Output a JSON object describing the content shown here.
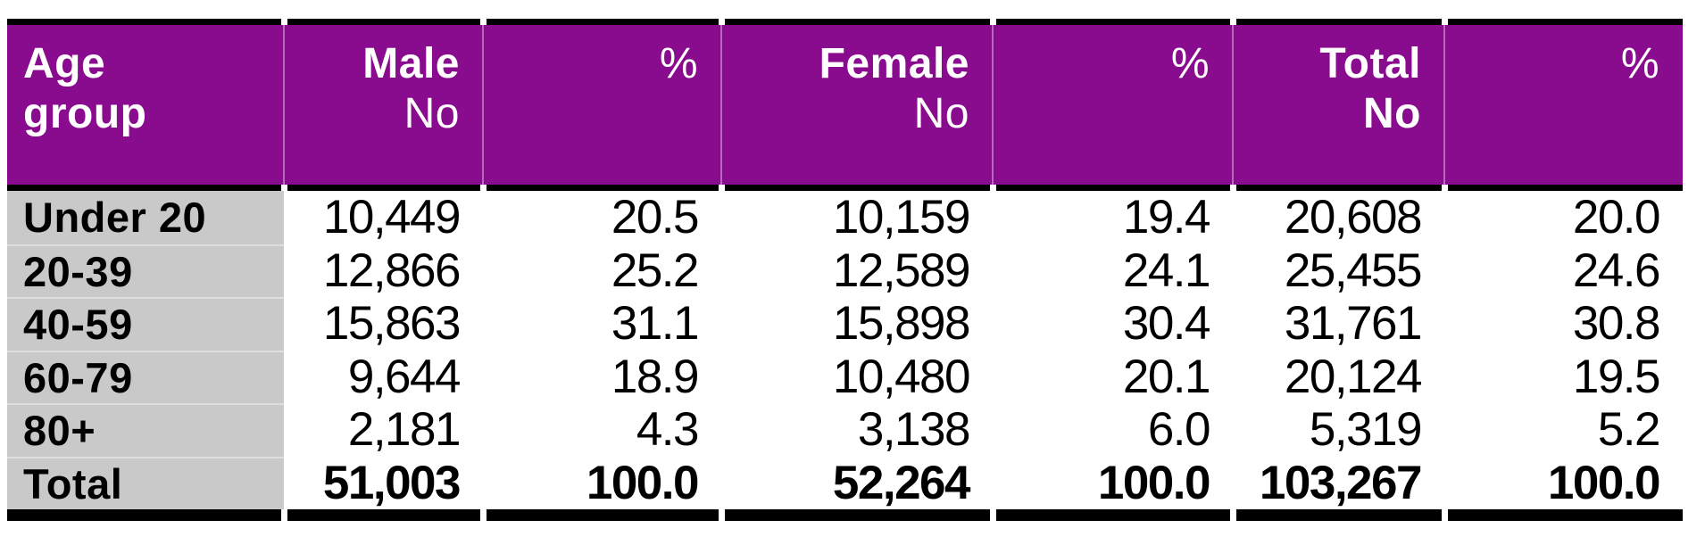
{
  "table": {
    "header": {
      "col1": {
        "line1": "Age",
        "line2": "group"
      },
      "col2": {
        "line1": "Male",
        "line2": "No"
      },
      "col3": {
        "line1": "",
        "line2": "%"
      },
      "col4": {
        "line1": "Female",
        "line2": "No"
      },
      "col5": {
        "line1": "",
        "line2": "%"
      },
      "col6": {
        "line1": "Total",
        "line2": "No"
      },
      "col7": {
        "line1": "",
        "line2": "%"
      }
    },
    "rows": [
      {
        "cells": [
          "Under 20",
          "10,449",
          "20.5",
          "10,159",
          "19.4",
          "20,608",
          "20.0"
        ]
      },
      {
        "cells": [
          "20-39",
          "12,866",
          "25.2",
          "12,589",
          "24.1",
          "25,455",
          "24.6"
        ]
      },
      {
        "cells": [
          "40-59",
          "15,863",
          "31.1",
          "15,898",
          "30.4",
          "31,761",
          "30.8"
        ]
      },
      {
        "cells": [
          "60-79",
          "9,644",
          "18.9",
          "10,480",
          "20.1",
          "20,124",
          "19.5"
        ]
      },
      {
        "cells": [
          "80+",
          "2,181",
          "4.3",
          "3,138",
          "6.0",
          "5,319",
          "5.2"
        ]
      },
      {
        "cells": [
          "Total",
          "51,003",
          "100.0",
          "52,264",
          "100.0",
          "103,267",
          "100.0"
        ]
      }
    ]
  },
  "colors": {
    "header_bg": "#8A0C8E",
    "header_text": "#FFFFFF",
    "row_label_bg": "#C9C9C9",
    "border": "#000000",
    "body_text": "#000000"
  },
  "chart_data": {
    "type": "table",
    "columns": [
      "Age group",
      "Male No",
      "Male %",
      "Female No",
      "Female %",
      "Total No",
      "Total %"
    ],
    "column_groups": [
      "Male",
      "Female",
      "Total"
    ],
    "sub_columns": [
      "No",
      "%"
    ],
    "rows": [
      {
        "age_group": "Under 20",
        "male_no": 10449,
        "male_pct": 20.5,
        "female_no": 10159,
        "female_pct": 19.4,
        "total_no": 20608,
        "total_pct": 20.0
      },
      {
        "age_group": "20-39",
        "male_no": 12866,
        "male_pct": 25.2,
        "female_no": 12589,
        "female_pct": 24.1,
        "total_no": 25455,
        "total_pct": 24.6
      },
      {
        "age_group": "40-59",
        "male_no": 15863,
        "male_pct": 31.1,
        "female_no": 15898,
        "female_pct": 30.4,
        "total_no": 31761,
        "total_pct": 30.8
      },
      {
        "age_group": "60-79",
        "male_no": 9644,
        "male_pct": 18.9,
        "female_no": 10480,
        "female_pct": 20.1,
        "total_no": 20124,
        "total_pct": 19.5
      },
      {
        "age_group": "80+",
        "male_no": 2181,
        "male_pct": 4.3,
        "female_no": 3138,
        "female_pct": 6.0,
        "total_no": 5319,
        "total_pct": 5.2
      },
      {
        "age_group": "Total",
        "male_no": 51003,
        "male_pct": 100.0,
        "female_no": 52264,
        "female_pct": 100.0,
        "total_no": 103267,
        "total_pct": 100.0
      }
    ]
  }
}
